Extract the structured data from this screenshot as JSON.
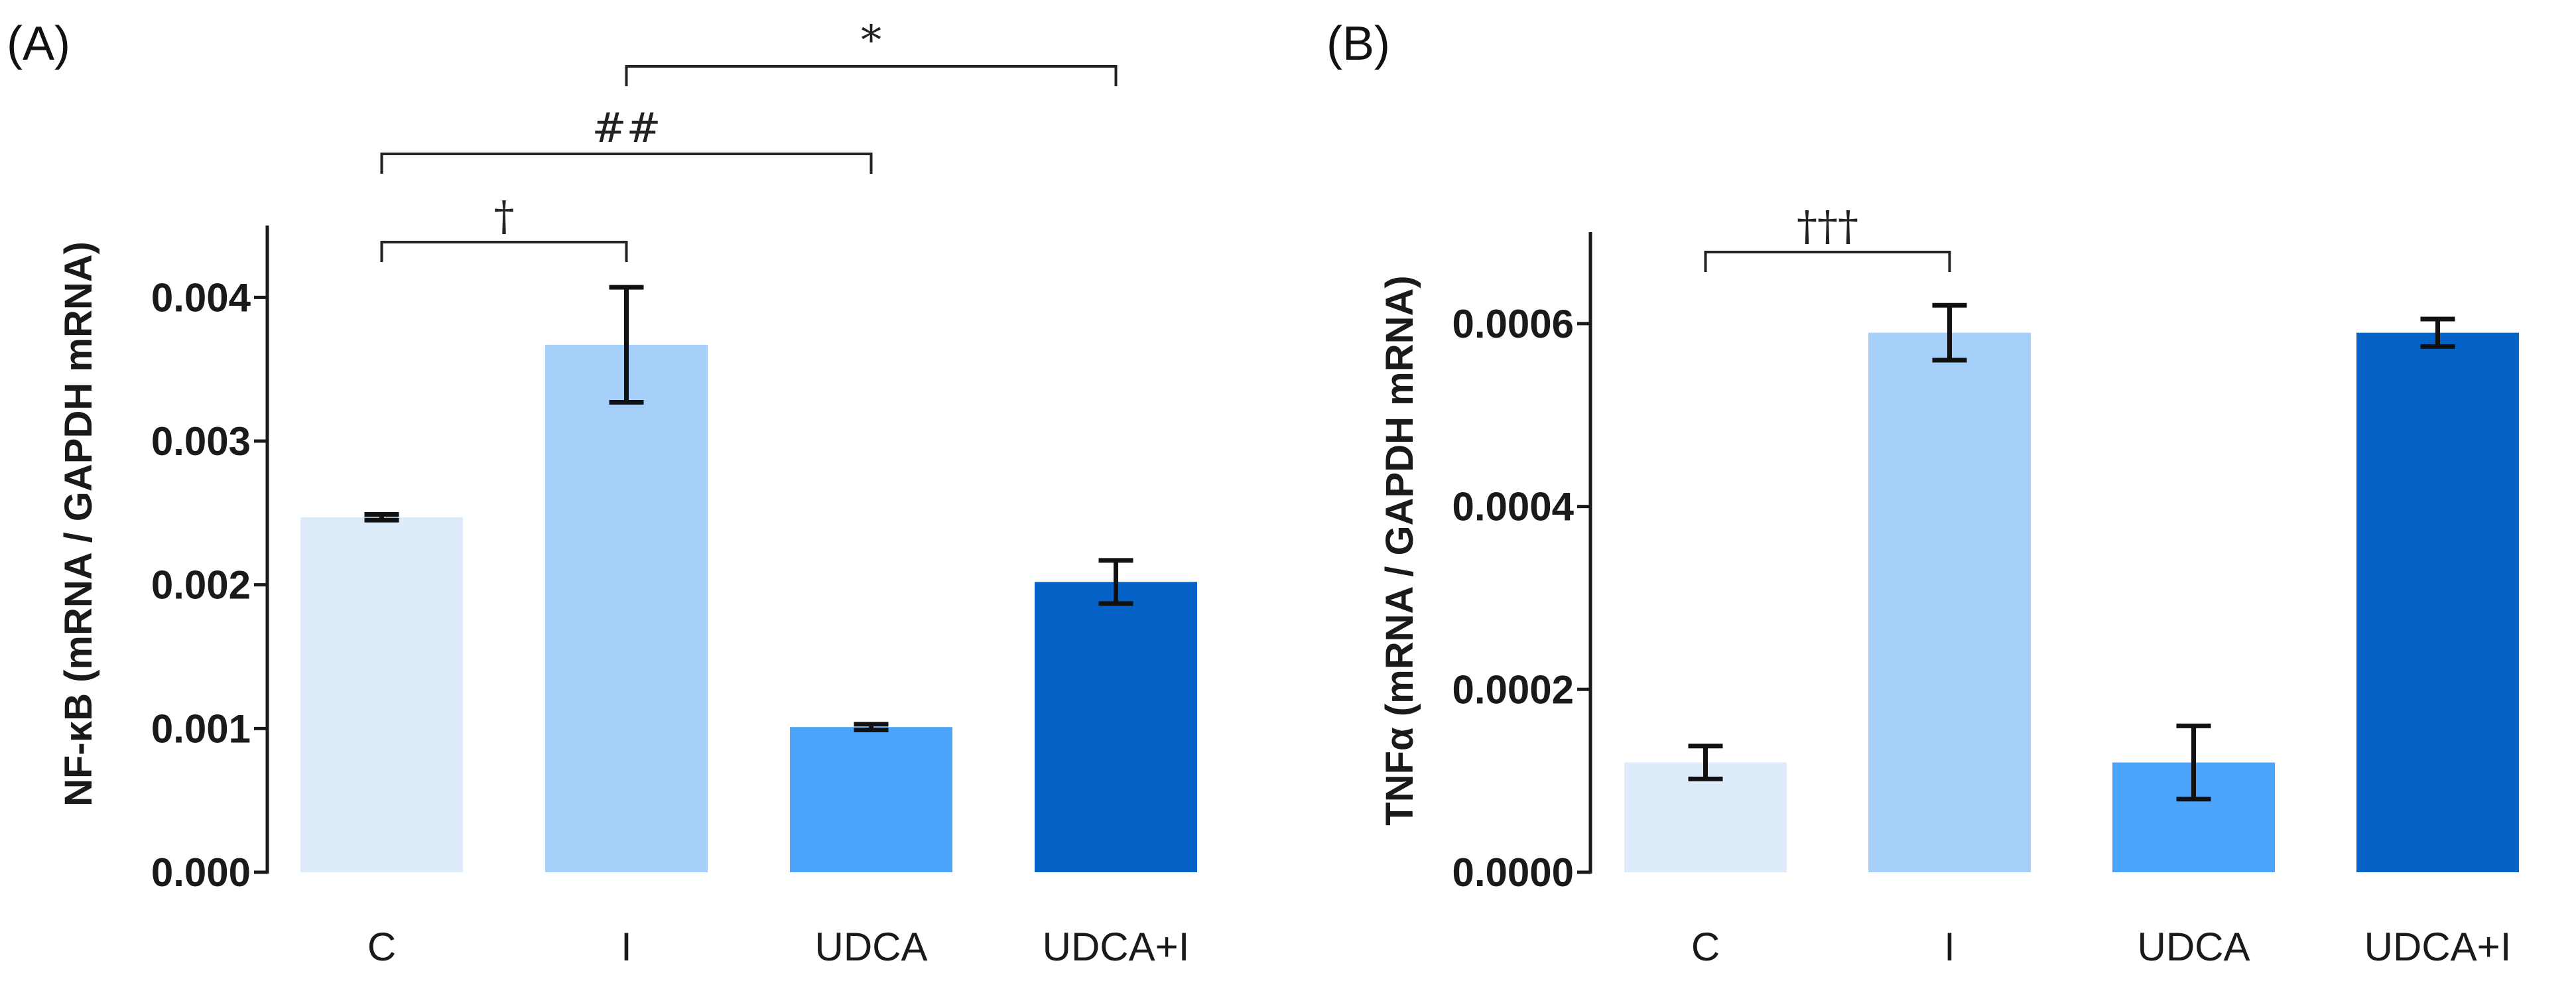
{
  "chart_data": [
    {
      "type": "bar",
      "panel_label": "(A)",
      "ylabel": "NF-κB (mRNA / GAPDH mRNA)",
      "categories": [
        "C",
        "I",
        "UDCA",
        "UDCA+I"
      ],
      "values": [
        0.00247,
        0.00367,
        0.00101,
        0.00202
      ],
      "errors": [
        2e-05,
        0.0004,
        2e-05,
        0.00015
      ],
      "colors": [
        "#deebfb",
        "#a6d0fa",
        "#4da5fb",
        "#0563c8"
      ],
      "ylim": [
        0,
        0.0045
      ],
      "yticks": [
        0,
        0.001,
        0.002,
        0.003,
        0.004
      ],
      "ytick_labels": [
        "0.000",
        "0.001",
        "0.002",
        "0.003",
        "0.004"
      ],
      "annotations": [
        {
          "from": 0,
          "to": 1,
          "label": "†"
        },
        {
          "from": 0,
          "to": 2,
          "label": "##"
        },
        {
          "from": 1,
          "to": 3,
          "label": "*"
        }
      ]
    },
    {
      "type": "bar",
      "panel_label": "(B)",
      "ylabel": "TNFα (mRNA / GAPDH mRNA)",
      "categories": [
        "C",
        "I",
        "UDCA",
        "UDCA+I"
      ],
      "values": [
        0.00012,
        0.00059,
        0.00012,
        0.00059
      ],
      "errors": [
        1.8e-05,
        3e-05,
        4e-05,
        1.5e-05
      ],
      "colors": [
        "#deebfb",
        "#a6d0fa",
        "#4da5fb",
        "#0563c8"
      ],
      "ylim": [
        0,
        0.0007
      ],
      "yticks": [
        0,
        0.0002,
        0.0004,
        0.0006
      ],
      "ytick_labels": [
        "0.0000",
        "0.0002",
        "0.0004",
        "0.0006"
      ],
      "annotations": [
        {
          "from": 0,
          "to": 1,
          "label": "†††"
        }
      ]
    }
  ]
}
